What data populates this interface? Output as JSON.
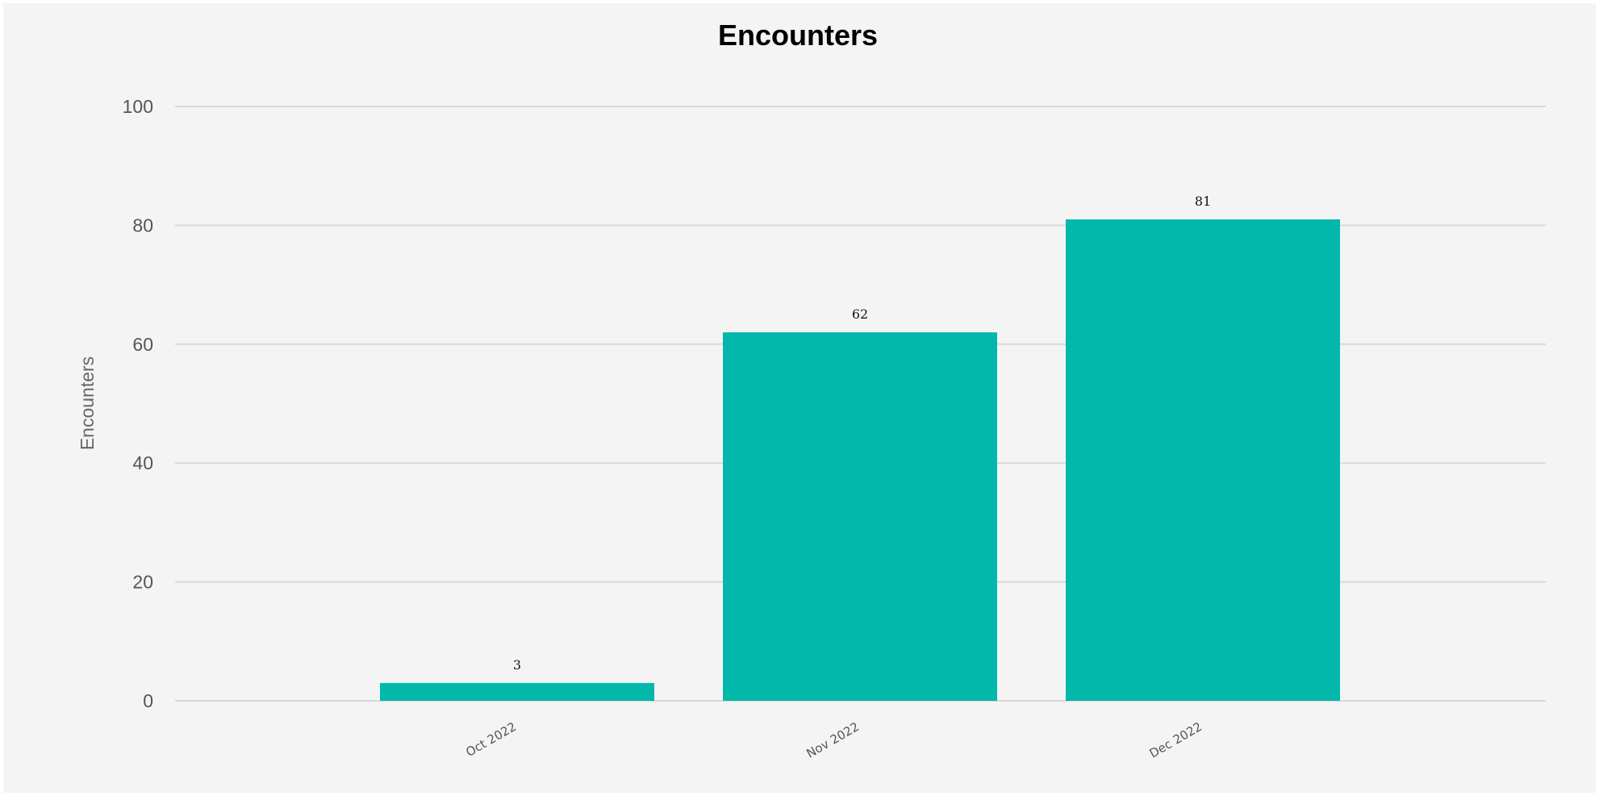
{
  "chart_data": {
    "type": "bar",
    "title": "Encounters",
    "xlabel": "",
    "ylabel": "Encounters",
    "categories": [
      "Oct 2022",
      "Nov 2022",
      "Dec 2022"
    ],
    "values": [
      3,
      62,
      81
    ],
    "data_labels": [
      "3",
      "62",
      "81"
    ],
    "ylim": [
      0,
      100
    ],
    "yticks": [
      0,
      20,
      40,
      60,
      80,
      100
    ],
    "ytick_labels": [
      "0",
      "20",
      "40",
      "60",
      "80",
      "100"
    ],
    "grid": true,
    "legend": "none",
    "colors": {
      "bar": "#02b8ab",
      "background": "#f4f4f5",
      "gridline": "#d9d9d9"
    }
  }
}
